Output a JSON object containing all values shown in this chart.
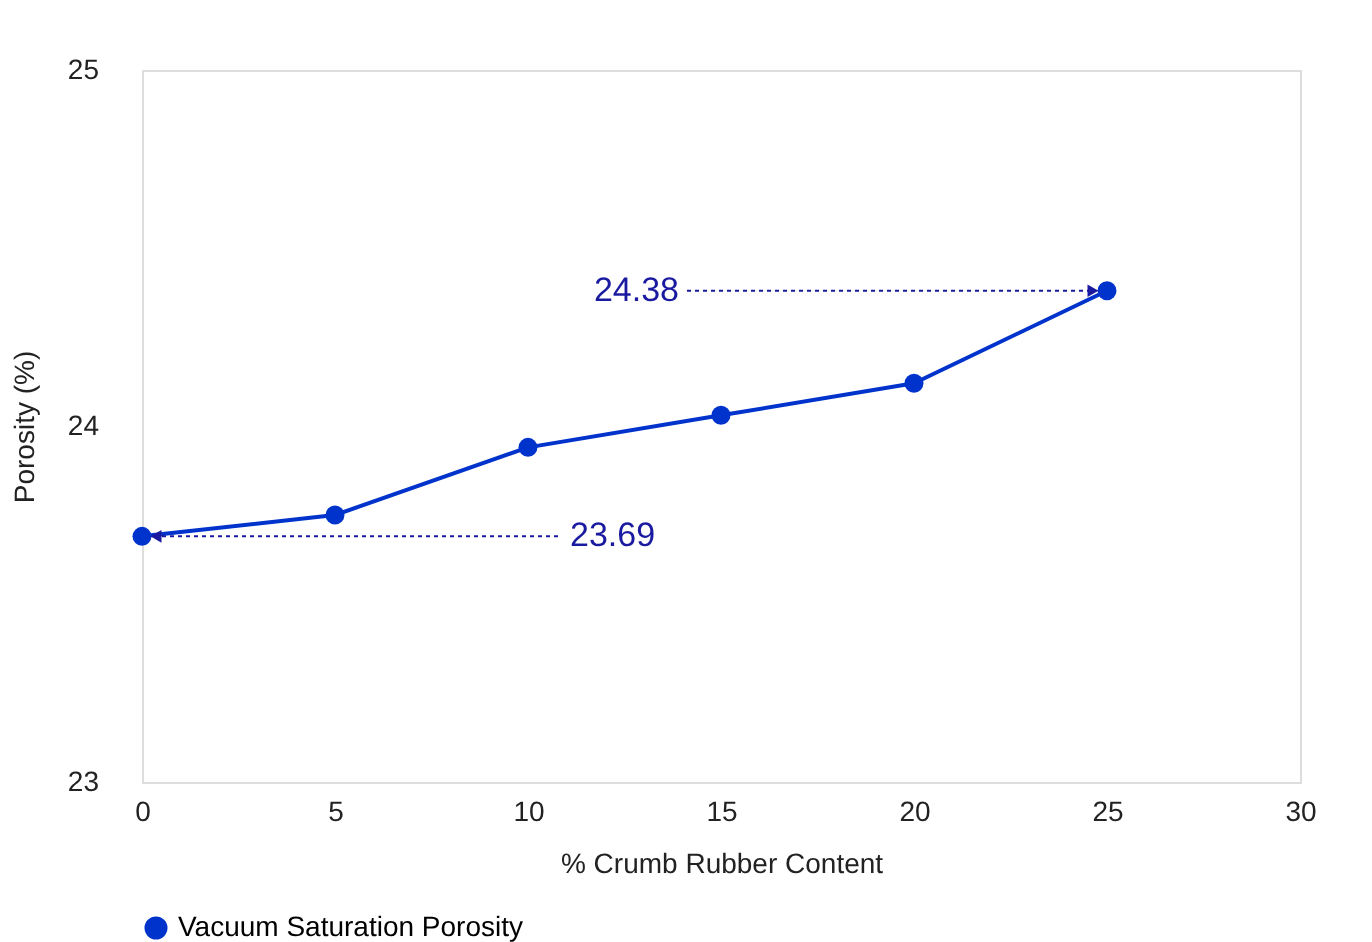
{
  "chart_data": {
    "type": "line",
    "xlabel": "% Crumb Rubber Content",
    "ylabel": "Porosity (%)",
    "x": [
      0,
      5,
      10,
      15,
      20,
      25
    ],
    "series": [
      {
        "name": "Vacuum Saturation Porosity",
        "color": "#0033cc",
        "values": [
          23.69,
          23.75,
          23.94,
          24.03,
          24.12,
          24.38
        ]
      }
    ],
    "xlim": [
      0,
      30
    ],
    "xticks": [
      0,
      5,
      10,
      15,
      20,
      25,
      30
    ],
    "ylim": [
      23,
      25
    ],
    "yticks": [
      23,
      24,
      25
    ],
    "annotations": [
      {
        "text": "23.69",
        "x": 0,
        "y": 23.69
      },
      {
        "text": "24.38",
        "x": 25,
        "y": 24.38
      }
    ],
    "marker": "circle",
    "line_style": "solid",
    "grid": false,
    "legend": "bottom"
  }
}
